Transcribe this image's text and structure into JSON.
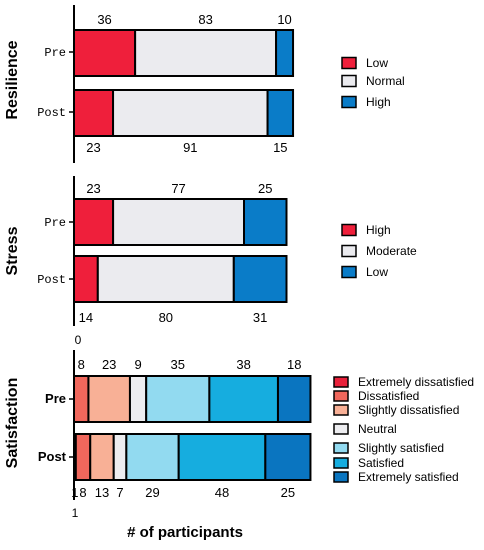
{
  "chart_data": [
    {
      "type": "bar",
      "stacked": true,
      "orientation": "horizontal",
      "panel": "Resilience",
      "categories": [
        "Pre",
        "Post"
      ],
      "series": [
        {
          "name": "Low",
          "values": [
            36,
            23
          ],
          "color": "#EF1F3B"
        },
        {
          "name": "Normal",
          "values": [
            83,
            91
          ],
          "color": "#EBEBEF"
        },
        {
          "name": "High",
          "values": [
            10,
            15
          ],
          "color": "#0A7CC8"
        }
      ]
    },
    {
      "type": "bar",
      "stacked": true,
      "orientation": "horizontal",
      "panel": "Stress",
      "categories": [
        "Pre",
        "Post"
      ],
      "series": [
        {
          "name": "High",
          "values": [
            23,
            14
          ],
          "color": "#EF1F3B"
        },
        {
          "name": "Moderate",
          "values": [
            77,
            80
          ],
          "color": "#EBEBEF"
        },
        {
          "name": "Low",
          "values": [
            25,
            31
          ],
          "color": "#0A7CC8"
        }
      ],
      "axis_tick": "0"
    },
    {
      "type": "bar",
      "stacked": true,
      "orientation": "horizontal",
      "panel": "Satisfaction",
      "categories": [
        "Pre",
        "Post"
      ],
      "series": [
        {
          "name": "Extremely dissatisfied",
          "values": [
            0,
            1
          ],
          "color": "#E8203A"
        },
        {
          "name": "Dissatisfied",
          "values": [
            8,
            8
          ],
          "color": "#F0675C"
        },
        {
          "name": "Slightly dissatisfied",
          "values": [
            23,
            13
          ],
          "color": "#F8B096"
        },
        {
          "name": "Neutral",
          "values": [
            9,
            7
          ],
          "color": "#EDEDF0"
        },
        {
          "name": "Slightly satisfied",
          "values": [
            35,
            29
          ],
          "color": "#92DAF0"
        },
        {
          "name": "Satisfied",
          "values": [
            38,
            48
          ],
          "color": "#16ADDF"
        },
        {
          "name": "Extremely satisfied",
          "values": [
            18,
            25
          ],
          "color": "#0A75C0"
        }
      ],
      "axis_tick": "1",
      "xlabel": "# of participants"
    }
  ]
}
